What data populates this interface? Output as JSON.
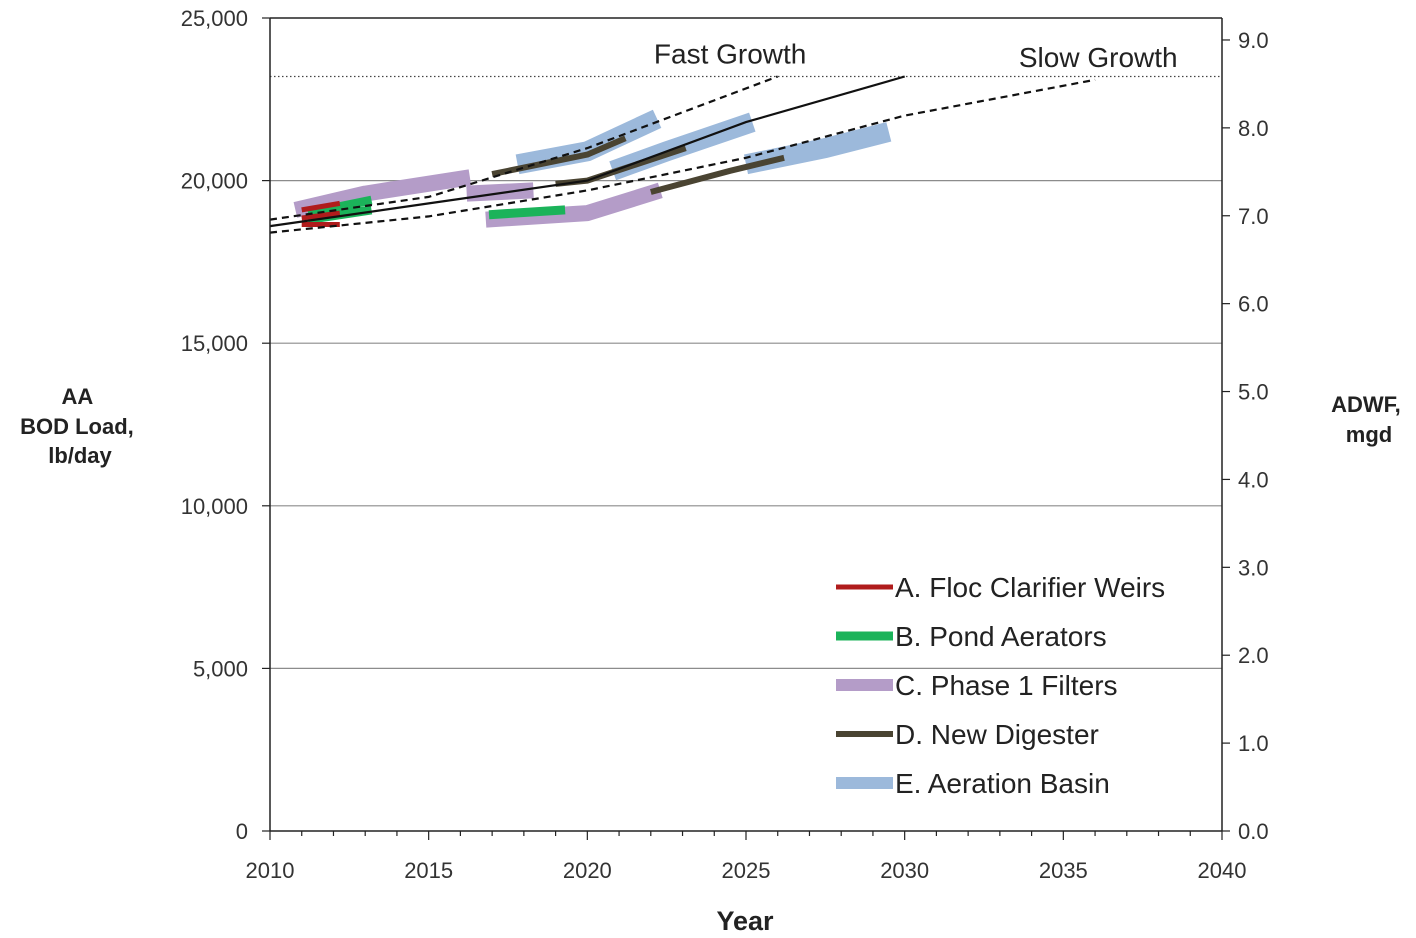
{
  "chart_data": {
    "type": "line",
    "title": "",
    "xlabel": "Year",
    "ylabel_left": [
      "AA",
      "BOD Load,",
      "lb/day"
    ],
    "ylabel_right": [
      "ADWF,",
      "mgd"
    ],
    "xlim": [
      2010,
      2040
    ],
    "ylim_left": [
      0,
      25000
    ],
    "ylim_right": [
      0,
      9.25
    ],
    "x_ticks": [
      "2010",
      "2015",
      "2020",
      "2025",
      "2030",
      "2035",
      "2040"
    ],
    "y_left_ticks": [
      "0",
      "5,000",
      "10,000",
      "15,000",
      "20,000",
      "25,000"
    ],
    "y_right_ticks": [
      "0.0",
      "1.0",
      "2.0",
      "3.0",
      "4.0",
      "5.0",
      "6.0",
      "7.0",
      "8.0",
      "9.0"
    ],
    "grid": "horizontal",
    "capacity_line": {
      "y": 23200,
      "style": "dotted"
    },
    "annotations": [
      {
        "text": "Fast Growth",
        "x": 2024.5,
        "y": 23600
      },
      {
        "text": "Slow Growth",
        "x": 2036.1,
        "y": 23500
      }
    ],
    "series": [
      {
        "name": "",
        "style": "dashed",
        "points": [
          [
            2010,
            18800
          ],
          [
            2015,
            19500
          ],
          [
            2020,
            21000
          ],
          [
            2026,
            23200
          ]
        ]
      },
      {
        "name": "",
        "style": "solid",
        "points": [
          [
            2010,
            18600
          ],
          [
            2015,
            19300
          ],
          [
            2020,
            20000
          ],
          [
            2025,
            21800
          ],
          [
            2030,
            23200
          ]
        ]
      },
      {
        "name": "",
        "style": "dashed",
        "points": [
          [
            2010,
            18400
          ],
          [
            2015,
            18900
          ],
          [
            2020,
            19700
          ],
          [
            2025,
            20700
          ],
          [
            2030,
            22000
          ],
          [
            2036,
            23100
          ]
        ]
      }
    ],
    "bands": [
      {
        "key": "E",
        "segments": [
          [
            [
              2017.8,
              20500
            ],
            [
              2020,
              20900
            ],
            [
              2022.2,
              21900
            ]
          ],
          [
            [
              2020.8,
              20300
            ],
            [
              2022.5,
              20900
            ],
            [
              2025.2,
              21800
            ]
          ],
          [
            [
              2025,
              20500
            ],
            [
              2027.5,
              21000
            ],
            [
              2029.5,
              21500
            ]
          ]
        ]
      },
      {
        "key": "C",
        "segments": [
          [
            [
              2010.8,
              19100
            ],
            [
              2013,
              19600
            ],
            [
              2016.3,
              20100
            ]
          ],
          [
            [
              2016.2,
              19600
            ],
            [
              2018.3,
              19700
            ]
          ],
          [
            [
              2016.8,
              18800
            ],
            [
              2020,
              19000
            ],
            [
              2022.3,
              19700
            ]
          ]
        ]
      },
      {
        "key": "B",
        "segments": [
          [
            [
              2011.2,
              19000
            ],
            [
              2013.2,
              19400
            ]
          ],
          [
            [
              2011.2,
              18800
            ],
            [
              2013.2,
              19100
            ]
          ],
          [
            [
              2016.9,
              18950
            ],
            [
              2019.3,
              19100
            ]
          ]
        ]
      },
      {
        "key": "A",
        "segments": [
          [
            [
              2011,
              19100
            ],
            [
              2012.2,
              19300
            ]
          ],
          [
            [
              2011,
              18850
            ],
            [
              2012.2,
              19000
            ]
          ],
          [
            [
              2011,
              18650
            ],
            [
              2012.2,
              18650
            ]
          ]
        ]
      },
      {
        "key": "D",
        "segments": [
          [
            [
              2017,
              20200
            ],
            [
              2020,
              20800
            ],
            [
              2021.2,
              21300
            ]
          ],
          [
            [
              2019,
              19900
            ],
            [
              2020,
              20000
            ],
            [
              2023.1,
              21000
            ]
          ],
          [
            [
              2022,
              19650
            ],
            [
              2024.5,
              20300
            ],
            [
              2026.2,
              20700
            ]
          ]
        ]
      }
    ],
    "legend": {
      "position": "bottom-right",
      "items": [
        {
          "key": "A",
          "label": "A. Floc Clarifier Weirs",
          "color": "#b01c1c",
          "width": 5
        },
        {
          "key": "B",
          "label": "B. Pond Aerators",
          "color": "#1bb35a",
          "width": 9
        },
        {
          "key": "C",
          "label": "C. Phase 1 Filters",
          "color": "#b49cc8",
          "width": 16
        },
        {
          "key": "D",
          "label": "D. New Digester",
          "color": "#4a4432",
          "width": 6
        },
        {
          "key": "E",
          "label": "E. Aeration Basin",
          "color": "#9cb9db",
          "width": 20
        }
      ]
    }
  }
}
